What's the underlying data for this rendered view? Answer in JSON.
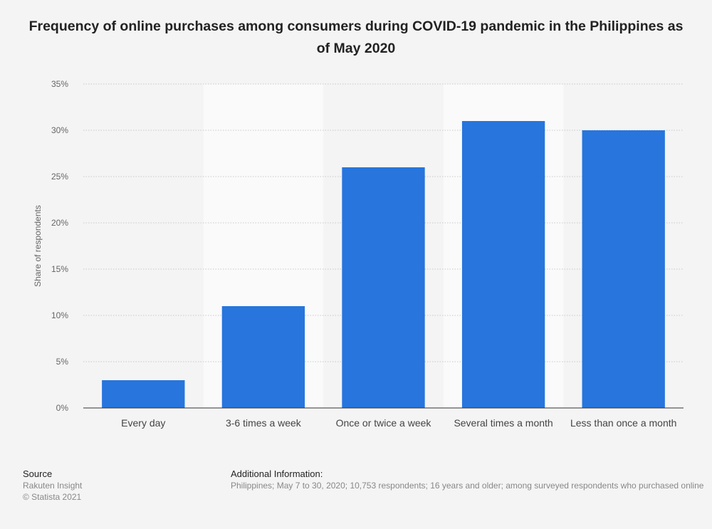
{
  "chart_data": {
    "type": "bar",
    "title": "Frequency of online purchases among consumers during COVID-19 pandemic in the Philippines as of May 2020",
    "categories": [
      "Every day",
      "3-6 times a week",
      "Once or twice a week",
      "Several times a month",
      "Less than once a month"
    ],
    "values": [
      3,
      11,
      26,
      31,
      30
    ],
    "xlabel": "",
    "ylabel": "Share of respondents",
    "ylim": [
      0,
      35
    ],
    "yticks": [
      0,
      5,
      10,
      15,
      20,
      25,
      30,
      35
    ],
    "ytick_labels": [
      "0%",
      "5%",
      "10%",
      "15%",
      "20%",
      "25%",
      "30%",
      "35%"
    ],
    "grid": true,
    "bar_color": "#2775dd"
  },
  "footer": {
    "source_heading": "Source",
    "source_lines": [
      "Rakuten Insight",
      "© Statista 2021"
    ],
    "info_heading": "Additional Information:",
    "info_text": "Philippines; May 7 to 30, 2020; 10,753 respondents; 16 years and older; among surveyed respondents who purchased online"
  }
}
